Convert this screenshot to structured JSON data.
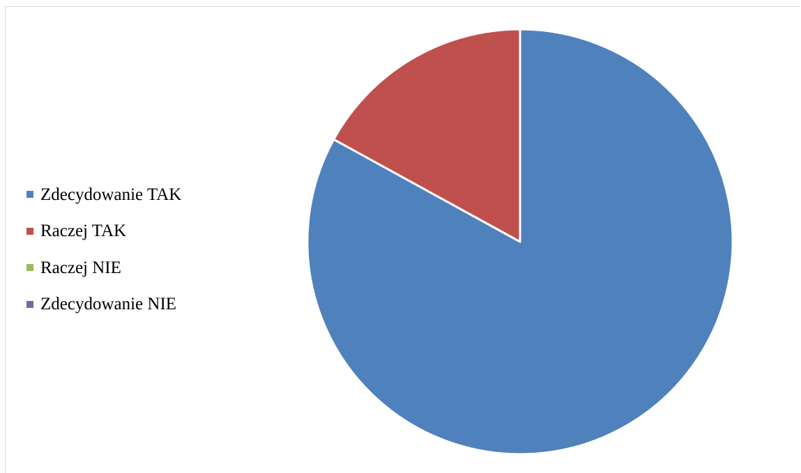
{
  "chart_data": {
    "type": "pie",
    "title": "",
    "categories": [
      "Zdecydowanie TAK",
      "Raczej TAK",
      "Raczej NIE",
      "Zdecydowanie NIE"
    ],
    "values": [
      83,
      17,
      0,
      0
    ],
    "colors": [
      "#4F81BD",
      "#C0504D",
      "#9BBB59",
      "#8064A2"
    ],
    "start_angle_deg": 0,
    "direction": "clockwise",
    "slice_border_color": "#FFFFFF",
    "legend_position": "left"
  }
}
